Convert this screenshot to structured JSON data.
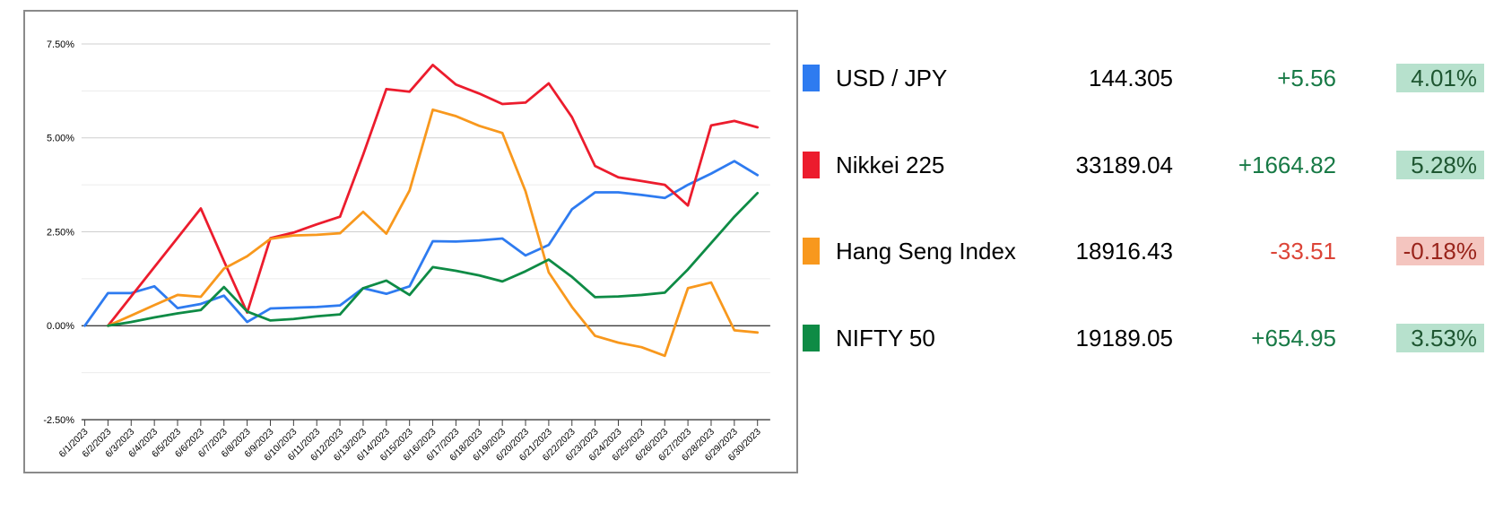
{
  "chart_data": {
    "type": "line",
    "x": [
      "6/1/2023",
      "6/2/2023",
      "6/3/2023",
      "6/4/2023",
      "6/5/2023",
      "6/6/2023",
      "6/7/2023",
      "6/8/2023",
      "6/9/2023",
      "6/10/2023",
      "6/11/2023",
      "6/12/2023",
      "6/13/2023",
      "6/14/2023",
      "6/15/2023",
      "6/16/2023",
      "6/17/2023",
      "6/18/2023",
      "6/19/2023",
      "6/20/2023",
      "6/21/2023",
      "6/22/2023",
      "6/23/2023",
      "6/24/2023",
      "6/25/2023",
      "6/26/2023",
      "6/27/2023",
      "6/28/2023",
      "6/29/2023",
      "6/30/2023"
    ],
    "series": [
      {
        "name": "USD / JPY",
        "color": "#2e7bf0",
        "values": [
          0.0,
          0.87,
          0.87,
          1.05,
          0.47,
          0.58,
          0.8,
          0.1,
          0.46,
          0.48,
          0.5,
          0.54,
          1.0,
          0.85,
          1.05,
          2.25,
          2.24,
          2.27,
          2.32,
          1.87,
          2.15,
          3.1,
          3.55,
          3.55,
          3.48,
          3.4,
          3.75,
          4.05,
          4.38,
          4.01
        ]
      },
      {
        "name": "Nikkei 225",
        "color": "#ec1c2d",
        "values": [
          null,
          0.0,
          0.78,
          1.56,
          2.34,
          3.12,
          1.72,
          0.35,
          2.33,
          2.48,
          2.7,
          2.9,
          4.55,
          6.3,
          6.23,
          6.94,
          6.42,
          6.18,
          5.9,
          5.94,
          6.45,
          5.55,
          4.25,
          3.95,
          3.85,
          3.75,
          3.2,
          5.33,
          5.45,
          5.28
        ]
      },
      {
        "name": "Hang Seng Index",
        "color": "#f8981d",
        "values": [
          null,
          0.0,
          0.27,
          0.55,
          0.82,
          0.77,
          1.52,
          1.85,
          2.31,
          2.4,
          2.42,
          2.46,
          3.03,
          2.45,
          3.6,
          5.75,
          5.58,
          5.32,
          5.13,
          3.58,
          1.42,
          0.5,
          -0.27,
          -0.45,
          -0.57,
          -0.8,
          1.0,
          1.15,
          -0.12,
          -0.18
        ]
      },
      {
        "name": "NIFTY 50",
        "color": "#0e8b45",
        "values": [
          null,
          0.0,
          0.1,
          0.22,
          0.33,
          0.42,
          1.03,
          0.38,
          0.14,
          0.18,
          0.25,
          0.3,
          1.0,
          1.2,
          0.82,
          1.56,
          1.46,
          1.34,
          1.18,
          1.45,
          1.76,
          1.3,
          0.76,
          0.78,
          0.82,
          0.88,
          1.5,
          2.2,
          2.9,
          3.53
        ]
      }
    ],
    "title": "",
    "xlabel": "",
    "ylabel": "",
    "ylim": [
      -2.5,
      7.5
    ],
    "y_ticks": [
      7.5,
      5.0,
      2.5,
      0.0,
      -2.5
    ],
    "y_tick_labels": [
      "7.50%",
      "5.00%",
      "2.50%",
      "0.00%",
      "-2.50%"
    ],
    "minor_gridlines": [
      6.25,
      3.75,
      1.25,
      -1.25
    ],
    "grid": true,
    "legend_position": "right-table"
  },
  "quotes": {
    "rows": [
      {
        "name": "USD / JPY",
        "color": "#2e7bf0",
        "value": "144.305",
        "change": "+5.56",
        "pct": "4.01%",
        "dir": "up"
      },
      {
        "name": "Nikkei 225",
        "color": "#ec1c2d",
        "value": "33189.04",
        "change": "+1664.82",
        "pct": "5.28%",
        "dir": "up"
      },
      {
        "name": "Hang Seng Index",
        "color": "#f8981d",
        "value": "18916.43",
        "change": "-33.51",
        "pct": "-0.18%",
        "dir": "down"
      },
      {
        "name": "NIFTY 50",
        "color": "#0e8b45",
        "value": "19189.05",
        "change": "+654.95",
        "pct": "3.53%",
        "dir": "up"
      }
    ],
    "colors": {
      "up_text": "#187a46",
      "down_text": "#dc4437",
      "up_badge_bg": "#b7e1cd",
      "up_badge_text": "#1e5631",
      "down_badge_bg": "#f4c5bf",
      "down_badge_text": "#99241b"
    }
  }
}
